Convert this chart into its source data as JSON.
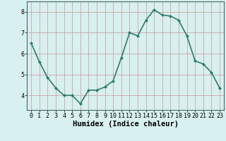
{
  "x": [
    0,
    1,
    2,
    3,
    4,
    5,
    6,
    7,
    8,
    9,
    10,
    11,
    12,
    13,
    14,
    15,
    16,
    17,
    18,
    19,
    20,
    21,
    22,
    23
  ],
  "y": [
    6.5,
    5.6,
    4.85,
    4.35,
    4.0,
    4.0,
    3.6,
    4.25,
    4.25,
    4.4,
    4.7,
    5.8,
    7.0,
    6.85,
    7.6,
    8.1,
    7.85,
    7.8,
    7.6,
    6.85,
    5.65,
    5.5,
    5.1,
    4.35
  ],
  "line_color": "#2e7d6e",
  "marker": "D",
  "marker_size": 2.0,
  "bg_color": "#d8f0ef",
  "grid_color": "#c8a8a8",
  "xlabel": "Humidex (Indice chaleur)",
  "xlabel_fontsize": 7.5,
  "xlim": [
    -0.5,
    23.5
  ],
  "ylim": [
    3.3,
    8.5
  ],
  "yticks": [
    4,
    5,
    6,
    7,
    8
  ],
  "xticks": [
    0,
    1,
    2,
    3,
    4,
    5,
    6,
    7,
    8,
    9,
    10,
    11,
    12,
    13,
    14,
    15,
    16,
    17,
    18,
    19,
    20,
    21,
    22,
    23
  ],
  "tick_fontsize": 6.0,
  "line_width": 1.2
}
